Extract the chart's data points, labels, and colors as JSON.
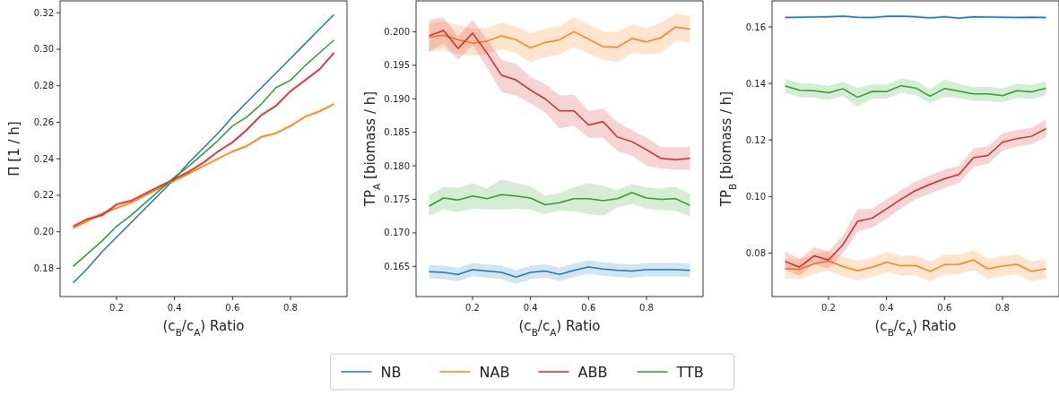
{
  "chart_data": [
    {
      "type": "line",
      "legend": "bottom",
      "ylabel": "Π [1 / h]",
      "xlabel": "(c$_{B}$/c$_{A}$) Ratio",
      "x": [
        0.05,
        0.1,
        0.15,
        0.2,
        0.25,
        0.3,
        0.35,
        0.4,
        0.45,
        0.5,
        0.55,
        0.6,
        0.65,
        0.7,
        0.75,
        0.8,
        0.85,
        0.9,
        0.95
      ],
      "xlim": [
        0.005,
        0.995
      ],
      "xticks": [
        0.2,
        0.4,
        0.6,
        0.8
      ],
      "ylim": [
        0.1645,
        0.3265
      ],
      "yticks": [
        {
          "value": 0.18,
          "label": "0.18"
        },
        {
          "value": 0.2,
          "label": "0.20"
        },
        {
          "value": 0.22,
          "label": "0.22"
        },
        {
          "value": 0.24,
          "label": "0.24"
        },
        {
          "value": 0.26,
          "label": "0.26"
        },
        {
          "value": 0.28,
          "label": "0.28"
        },
        {
          "value": 0.3,
          "label": "0.30"
        },
        {
          "value": 0.32,
          "label": "0.32"
        }
      ],
      "series": [
        {
          "name": "NB",
          "color": "#1f77b4",
          "values": [
            0.172,
            0.18,
            0.189,
            0.197,
            0.205,
            0.213,
            0.221,
            0.229,
            0.238,
            0.246,
            0.254,
            0.263,
            0.271,
            0.279,
            0.287,
            0.295,
            0.303,
            0.311,
            0.319
          ]
        },
        {
          "name": "NAB",
          "color": "#ff7f0e",
          "values": [
            0.202,
            0.206,
            0.21,
            0.213,
            0.216,
            0.22,
            0.224,
            0.228,
            0.232,
            0.236,
            0.24,
            0.244,
            0.247,
            0.252,
            0.254,
            0.258,
            0.263,
            0.266,
            0.27
          ],
          "lower": [
            0.201,
            0.205,
            0.209,
            0.212,
            0.215,
            0.219,
            0.223,
            0.227,
            0.231,
            0.235,
            0.239,
            0.243,
            0.246,
            0.251,
            0.253,
            0.257,
            0.262,
            0.265,
            0.269
          ],
          "upper": [
            0.203,
            0.207,
            0.211,
            0.214,
            0.217,
            0.221,
            0.225,
            0.229,
            0.233,
            0.237,
            0.241,
            0.245,
            0.248,
            0.253,
            0.255,
            0.259,
            0.264,
            0.267,
            0.271
          ]
        },
        {
          "name": "ABB",
          "color": "#d62728",
          "values": [
            0.203,
            0.207,
            0.209,
            0.215,
            0.217,
            0.221,
            0.225,
            0.229,
            0.233,
            0.238,
            0.244,
            0.249,
            0.256,
            0.264,
            0.269,
            0.277,
            0.283,
            0.289,
            0.298
          ],
          "lower": [
            0.202,
            0.206,
            0.208,
            0.214,
            0.216,
            0.22,
            0.224,
            0.228,
            0.232,
            0.237,
            0.243,
            0.248,
            0.255,
            0.263,
            0.268,
            0.276,
            0.282,
            0.288,
            0.297
          ],
          "upper": [
            0.204,
            0.208,
            0.21,
            0.216,
            0.218,
            0.222,
            0.226,
            0.23,
            0.234,
            0.239,
            0.245,
            0.25,
            0.257,
            0.265,
            0.27,
            0.278,
            0.284,
            0.29,
            0.299
          ]
        },
        {
          "name": "TTB",
          "color": "#2ca02c",
          "values": [
            0.181,
            0.188,
            0.195,
            0.203,
            0.209,
            0.216,
            0.223,
            0.23,
            0.236,
            0.243,
            0.25,
            0.258,
            0.263,
            0.27,
            0.279,
            0.283,
            0.291,
            0.298,
            0.305
          ]
        }
      ]
    },
    {
      "type": "line",
      "ylabel": "TP$_{A}$ [biomass / h]",
      "xlabel": "(c$_{B}$/c$_{A}$) Ratio",
      "x": [
        0.05,
        0.1,
        0.15,
        0.2,
        0.25,
        0.3,
        0.35,
        0.4,
        0.45,
        0.5,
        0.55,
        0.6,
        0.65,
        0.7,
        0.75,
        0.8,
        0.85,
        0.9,
        0.95
      ],
      "xlim": [
        0.005,
        0.995
      ],
      "xticks": [
        0.2,
        0.4,
        0.6,
        0.8
      ],
      "ylim": [
        0.1605,
        0.2046
      ],
      "yticks": [
        0.165,
        {
          "value": 0.17,
          "label": "0.170"
        },
        0.175,
        {
          "value": 0.18,
          "label": "0.180"
        },
        0.185,
        {
          "value": 0.19,
          "label": "0.190"
        },
        0.195,
        {
          "value": 0.2,
          "label": "0.200"
        }
      ],
      "series": [
        {
          "name": "NB",
          "color": "#1f77b4",
          "values": [
            0.1642,
            0.1641,
            0.1638,
            0.1645,
            0.1643,
            0.1641,
            0.1634,
            0.1641,
            0.1643,
            0.1638,
            0.1644,
            0.1649,
            0.1646,
            0.1644,
            0.1643,
            0.1645,
            0.1645,
            0.1645,
            0.1644
          ],
          "lower": [
            0.1632,
            0.1631,
            0.1628,
            0.1635,
            0.1633,
            0.1631,
            0.1624,
            0.1631,
            0.1633,
            0.1628,
            0.1634,
            0.1639,
            0.1636,
            0.1634,
            0.1633,
            0.1635,
            0.1635,
            0.1635,
            0.1634
          ],
          "upper": [
            0.1652,
            0.1651,
            0.1648,
            0.1655,
            0.1653,
            0.1651,
            0.1644,
            0.1651,
            0.1653,
            0.1648,
            0.1654,
            0.1659,
            0.1656,
            0.1654,
            0.1653,
            0.1655,
            0.1655,
            0.1655,
            0.1654
          ]
        },
        {
          "name": "NAB",
          "color": "#ff7f0e",
          "values": [
            0.1992,
            0.1995,
            0.1988,
            0.1983,
            0.1986,
            0.1994,
            0.1988,
            0.1976,
            0.1984,
            0.1988,
            0.2,
            0.1989,
            0.1978,
            0.1977,
            0.199,
            0.1985,
            0.1991,
            0.2007,
            0.2004
          ],
          "lower": [
            0.197,
            0.1973,
            0.1966,
            0.1964,
            0.1966,
            0.1974,
            0.1968,
            0.1954,
            0.1962,
            0.1966,
            0.1978,
            0.1967,
            0.1958,
            0.1955,
            0.1968,
            0.1966,
            0.1968,
            0.1986,
            0.1984
          ],
          "upper": [
            0.2012,
            0.2015,
            0.201,
            0.2005,
            0.2006,
            0.2014,
            0.2008,
            0.1998,
            0.2005,
            0.2008,
            0.2021,
            0.2011,
            0.2,
            0.2,
            0.2011,
            0.2005,
            0.2014,
            0.2027,
            0.2024
          ]
        },
        {
          "name": "ABB",
          "color": "#d62728",
          "values": [
            0.1994,
            0.2002,
            0.1975,
            0.1998,
            0.1968,
            0.1935,
            0.1928,
            0.1913,
            0.19,
            0.1882,
            0.1882,
            0.1861,
            0.1866,
            0.1843,
            0.1836,
            0.1824,
            0.1811,
            0.1809,
            0.1811
          ],
          "lower": [
            0.197,
            0.1982,
            0.1958,
            0.198,
            0.1946,
            0.191,
            0.1905,
            0.1893,
            0.188,
            0.1856,
            0.186,
            0.1842,
            0.1842,
            0.1822,
            0.1815,
            0.18,
            0.1796,
            0.1794,
            0.1794
          ],
          "upper": [
            0.2018,
            0.2021,
            0.1993,
            0.2018,
            0.1988,
            0.1958,
            0.1952,
            0.1932,
            0.1922,
            0.1905,
            0.1906,
            0.1882,
            0.1885,
            0.1865,
            0.1853,
            0.1842,
            0.1828,
            0.1828,
            0.1828
          ]
        },
        {
          "name": "TTB",
          "color": "#2ca02c",
          "values": [
            0.174,
            0.1752,
            0.1749,
            0.1755,
            0.1751,
            0.1757,
            0.1755,
            0.1752,
            0.1742,
            0.1745,
            0.1751,
            0.1751,
            0.1748,
            0.1751,
            0.176,
            0.1752,
            0.175,
            0.1751,
            0.1741
          ],
          "lower": [
            0.1725,
            0.1735,
            0.1731,
            0.1736,
            0.1735,
            0.1735,
            0.1736,
            0.1735,
            0.1728,
            0.1733,
            0.1732,
            0.1728,
            0.1726,
            0.1738,
            0.1743,
            0.1736,
            0.1734,
            0.1733,
            0.1724
          ],
          "upper": [
            0.1755,
            0.1769,
            0.1767,
            0.1774,
            0.1766,
            0.178,
            0.1774,
            0.1769,
            0.1756,
            0.1759,
            0.1768,
            0.1774,
            0.177,
            0.1764,
            0.1773,
            0.1768,
            0.1766,
            0.1769,
            0.1758
          ]
        }
      ]
    },
    {
      "type": "line",
      "ylabel": "TP$_{B}$ [biomass / h]",
      "xlabel": "(c$_{B}$/c$_{A}$) Ratio",
      "x": [
        0.05,
        0.1,
        0.15,
        0.2,
        0.25,
        0.3,
        0.35,
        0.4,
        0.45,
        0.5,
        0.55,
        0.6,
        0.65,
        0.7,
        0.75,
        0.8,
        0.85,
        0.9,
        0.95
      ],
      "xlim": [
        0.005,
        0.995
      ],
      "xticks": [
        0.2,
        0.4,
        0.6,
        0.8
      ],
      "ylim": [
        0.0646,
        0.1692
      ],
      "yticks": [
        {
          "value": 0.08,
          "label": "0.08"
        },
        {
          "value": 0.1,
          "label": "0.10"
        },
        {
          "value": 0.12,
          "label": "0.12"
        },
        {
          "value": 0.14,
          "label": "0.14"
        },
        {
          "value": 0.16,
          "label": "0.16"
        }
      ],
      "series": [
        {
          "name": "NB",
          "color": "#1f77b4",
          "values": [
            0.1633,
            0.1634,
            0.1635,
            0.1636,
            0.1638,
            0.1634,
            0.1633,
            0.1637,
            0.1638,
            0.1636,
            0.1632,
            0.1636,
            0.1631,
            0.1636,
            0.1635,
            0.1634,
            0.1633,
            0.1634,
            0.1633
          ],
          "lower": [
            0.1628,
            0.1629,
            0.163,
            0.1631,
            0.1633,
            0.1629,
            0.1628,
            0.1632,
            0.1633,
            0.1631,
            0.1627,
            0.1631,
            0.1626,
            0.1631,
            0.163,
            0.1629,
            0.1628,
            0.1629,
            0.1628
          ],
          "upper": [
            0.1638,
            0.1639,
            0.164,
            0.1641,
            0.1643,
            0.1639,
            0.1638,
            0.1642,
            0.1643,
            0.1641,
            0.1637,
            0.1641,
            0.1636,
            0.1641,
            0.164,
            0.1639,
            0.1638,
            0.1639,
            0.1638
          ]
        },
        {
          "name": "NAB",
          "color": "#ff7f0e",
          "values": [
            0.0745,
            0.0742,
            0.0762,
            0.0772,
            0.0752,
            0.0737,
            0.075,
            0.0767,
            0.0755,
            0.0756,
            0.0735,
            0.0759,
            0.076,
            0.0775,
            0.0744,
            0.0754,
            0.076,
            0.0735,
            0.0744
          ],
          "lower": [
            0.071,
            0.0707,
            0.0727,
            0.0737,
            0.0717,
            0.0702,
            0.0715,
            0.0732,
            0.072,
            0.0721,
            0.07,
            0.0724,
            0.0725,
            0.074,
            0.0709,
            0.0719,
            0.0725,
            0.07,
            0.0709
          ],
          "upper": [
            0.078,
            0.0777,
            0.0797,
            0.0807,
            0.0787,
            0.0772,
            0.0785,
            0.0802,
            0.079,
            0.0791,
            0.077,
            0.0794,
            0.0795,
            0.081,
            0.0779,
            0.0789,
            0.0795,
            0.077,
            0.0779
          ]
        },
        {
          "name": "ABB",
          "color": "#d62728",
          "values": [
            0.077,
            0.075,
            0.079,
            0.0775,
            0.083,
            0.0912,
            0.0923,
            0.0956,
            0.099,
            0.1021,
            0.1043,
            0.1063,
            0.1078,
            0.1137,
            0.1145,
            0.1192,
            0.1205,
            0.1213,
            0.124
          ],
          "lower": [
            0.074,
            0.072,
            0.076,
            0.0745,
            0.08,
            0.0875,
            0.089,
            0.0922,
            0.0958,
            0.099,
            0.101,
            0.103,
            0.1048,
            0.1105,
            0.1115,
            0.1162,
            0.1178,
            0.1185,
            0.121
          ],
          "upper": [
            0.0805,
            0.078,
            0.082,
            0.0805,
            0.0862,
            0.0955,
            0.0957,
            0.099,
            0.1022,
            0.1052,
            0.1075,
            0.1095,
            0.1108,
            0.117,
            0.1178,
            0.1222,
            0.1235,
            0.1243,
            0.1272
          ]
        },
        {
          "name": "TTB",
          "color": "#2ca02c",
          "values": [
            0.1391,
            0.1376,
            0.1374,
            0.1367,
            0.1381,
            0.1351,
            0.1372,
            0.1371,
            0.1392,
            0.1384,
            0.1355,
            0.1382,
            0.1373,
            0.1363,
            0.1363,
            0.1357,
            0.1374,
            0.137,
            0.1383
          ],
          "lower": [
            0.1366,
            0.1351,
            0.1349,
            0.1342,
            0.1356,
            0.1318,
            0.1347,
            0.1346,
            0.1367,
            0.1359,
            0.133,
            0.1352,
            0.1348,
            0.1338,
            0.1338,
            0.1332,
            0.1349,
            0.1345,
            0.1358
          ],
          "upper": [
            0.1416,
            0.1401,
            0.1399,
            0.1392,
            0.1406,
            0.1384,
            0.1397,
            0.1396,
            0.1417,
            0.1409,
            0.138,
            0.1414,
            0.1398,
            0.1388,
            0.1388,
            0.1382,
            0.1399,
            0.1395,
            0.1408
          ]
        }
      ]
    }
  ]
}
